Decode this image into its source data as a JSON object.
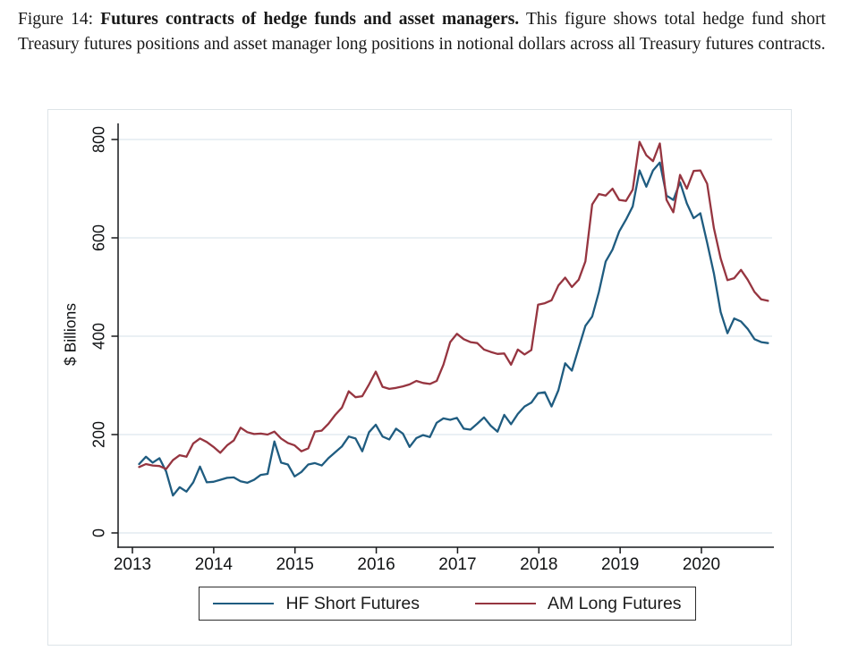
{
  "caption": {
    "prefix": "Figure 14: ",
    "bold": "Futures contracts of hedge funds and asset managers.",
    "rest": " This figure shows total hedge fund short Treasury futures positions and asset manager long positions in notional dollars across all Treasury futures contracts."
  },
  "chart_data": {
    "type": "line",
    "title": "",
    "xlabel": "",
    "ylabel": "$ Billions",
    "ylim": [
      0,
      800
    ],
    "yticks": [
      0,
      200,
      400,
      600,
      800
    ],
    "xticks": [
      2013,
      2014,
      2015,
      2016,
      2017,
      2018,
      2019,
      2020
    ],
    "grid": true,
    "legend_position": "bottom",
    "x_frequency": "monthly",
    "x_range": [
      "2013-02",
      "2020-11"
    ],
    "series": [
      {
        "name": "HF Short Futures",
        "color": "#1f5c80",
        "values": [
          140,
          155,
          143,
          152,
          125,
          76,
          93,
          84,
          103,
          135,
          103,
          104,
          108,
          112,
          113,
          105,
          102,
          108,
          118,
          120,
          186,
          143,
          139,
          115,
          124,
          139,
          142,
          137,
          152,
          164,
          176,
          196,
          192,
          166,
          205,
          220,
          196,
          190,
          212,
          202,
          175,
          193,
          199,
          195,
          224,
          233,
          230,
          234,
          212,
          210,
          222,
          235,
          218,
          206,
          240,
          221,
          242,
          257,
          265,
          284,
          286,
          257,
          290,
          345,
          330,
          376,
          421,
          440,
          490,
          552,
          576,
          613,
          637,
          664,
          737,
          704,
          737,
          753,
          686,
          677,
          713,
          670,
          640,
          650,
          590,
          528,
          449,
          406,
          436,
          430,
          415,
          394,
          388,
          386
        ]
      },
      {
        "name": "AM Long Futures",
        "color": "#963540",
        "values": [
          134,
          140,
          137,
          136,
          130,
          148,
          158,
          155,
          182,
          192,
          185,
          175,
          163,
          178,
          188,
          214,
          205,
          201,
          202,
          200,
          206,
          192,
          183,
          178,
          166,
          172,
          206,
          208,
          222,
          240,
          255,
          288,
          276,
          278,
          302,
          328,
          297,
          293,
          295,
          298,
          302,
          309,
          305,
          303,
          309,
          342,
          388,
          405,
          394,
          388,
          386,
          373,
          368,
          364,
          365,
          342,
          373,
          363,
          372,
          464,
          467,
          473,
          503,
          519,
          500,
          515,
          552,
          668,
          689,
          686,
          700,
          677,
          675,
          698,
          795,
          768,
          756,
          792,
          677,
          652,
          728,
          700,
          736,
          737,
          710,
          620,
          558,
          514,
          518,
          535,
          515,
          490,
          475,
          472
        ]
      }
    ]
  },
  "colors": {
    "hf_line": "#1f5c80",
    "am_line": "#963540",
    "gridline": "#e3ebf1",
    "axis": "#17191b",
    "figure_border": "#dde4e8",
    "legend_border": "#2e2e2e"
  }
}
